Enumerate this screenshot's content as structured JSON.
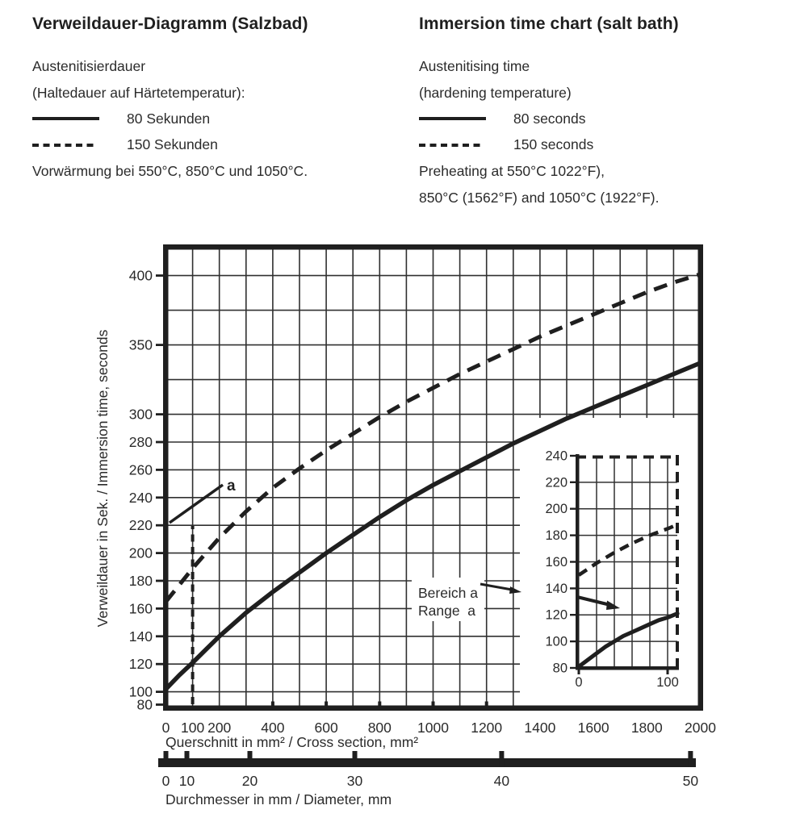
{
  "header": {
    "german": {
      "title": "Verweildauer-Diagramm (Salzbad)",
      "line1": "Austenitisierdauer",
      "line2": "(Haltedauer auf Härtetemperatur):",
      "legend": [
        {
          "style": "solid",
          "label": "80 Sekunden"
        },
        {
          "style": "dashed",
          "label": "150 Sekunden"
        }
      ],
      "note": "Vorwärmung bei 550°C, 850°C und 1050°C."
    },
    "english": {
      "title": "Immersion time chart (salt bath)",
      "line1": "Austenitising time",
      "line2": "(hardening temperature)",
      "legend": [
        {
          "style": "solid",
          "label": "80 seconds"
        },
        {
          "style": "dashed",
          "label": "150 seconds"
        }
      ],
      "note": "Preheating at 550°C 1022°F),",
      "note2": "850°C (1562°F) and 1050°C (1922°F)."
    }
  },
  "colors": {
    "ink": "#1f1f1f",
    "grid": "#303030",
    "text": "#2b2b2b",
    "background": "#ffffff"
  },
  "chart_data": [
    {
      "id": "main",
      "type": "line",
      "xlabel": "Querschnitt in mm² / Cross section, mm²",
      "ylabel": "Verweildauer in Sek. / Immersion time, seconds",
      "xlim": [
        0,
        2000
      ],
      "ylim": [
        88,
        421
      ],
      "x_tick_labels": [
        0,
        100,
        200,
        400,
        600,
        800,
        1000,
        1200,
        1400,
        1600,
        1800,
        2000
      ],
      "y_tick_labels": [
        80,
        100,
        120,
        140,
        160,
        180,
        200,
        220,
        240,
        260,
        280,
        300,
        350,
        400
      ],
      "x_grid_step": 100,
      "y_grid_values": [
        100,
        120,
        140,
        160,
        180,
        200,
        220,
        240,
        260,
        280,
        300,
        325,
        350,
        375,
        400
      ],
      "grid": true,
      "legend_position": "header",
      "series": [
        {
          "name": "80 Sekunden / 80 seconds",
          "style": "solid",
          "x": [
            0,
            50,
            100,
            200,
            300,
            400,
            500,
            600,
            700,
            800,
            900,
            1000,
            1100,
            1200,
            1300,
            1400,
            1500,
            1600,
            1700,
            1800,
            1900,
            2000
          ],
          "y": [
            102,
            112,
            121,
            140,
            157,
            172,
            186,
            200,
            213,
            226,
            238,
            249,
            259,
            269,
            279,
            288,
            297,
            305,
            313,
            321,
            329,
            337
          ]
        },
        {
          "name": "150 Sekunden / 150 seconds",
          "style": "dashed",
          "x": [
            0,
            50,
            100,
            200,
            300,
            400,
            500,
            600,
            700,
            800,
            900,
            1000,
            1100,
            1200,
            1300,
            1400,
            1500,
            1600,
            1700,
            1800,
            1900,
            2000
          ],
          "y": [
            165,
            177,
            189,
            211,
            230,
            247,
            261,
            274,
            286,
            298,
            309,
            319,
            329,
            338,
            347,
            356,
            364,
            372,
            380,
            388,
            395,
            401
          ]
        }
      ],
      "secondary_x_axis": {
        "label": "Durchmesser in mm / Diameter, mm",
        "tick_labels": [
          0,
          10,
          20,
          30,
          40,
          50
        ],
        "mapping": "cross_section_mm2 = pi * d^2 / 4"
      },
      "annotations": {
        "a_marker": {
          "x": 100,
          "label": "a"
        },
        "region_label": [
          "Bereich a",
          "Range  a"
        ]
      }
    },
    {
      "id": "inset",
      "type": "line",
      "title": "Bereich a / Range a (detail)",
      "xlim": [
        0,
        111
      ],
      "ylim": [
        80,
        240
      ],
      "x_tick_labels": [
        0,
        100
      ],
      "y_tick_labels": [
        80,
        100,
        120,
        140,
        160,
        180,
        200,
        220,
        240
      ],
      "x_grid_step": 20,
      "y_grid_step": 20,
      "grid": true,
      "series": [
        {
          "name": "80 Sekunden / 80 seconds",
          "style": "solid",
          "x": [
            0,
            10,
            20,
            30,
            40,
            50,
            60,
            70,
            80,
            90,
            100,
            111
          ],
          "y": [
            81,
            86,
            91,
            96,
            100,
            104,
            107,
            110,
            113,
            116,
            118,
            121
          ]
        },
        {
          "name": "150 Sekunden / 150 seconds",
          "style": "dashed",
          "x": [
            0,
            20,
            40,
            60,
            80,
            100,
            111
          ],
          "y": [
            150,
            159,
            167,
            174,
            180,
            185,
            188
          ]
        }
      ]
    }
  ]
}
